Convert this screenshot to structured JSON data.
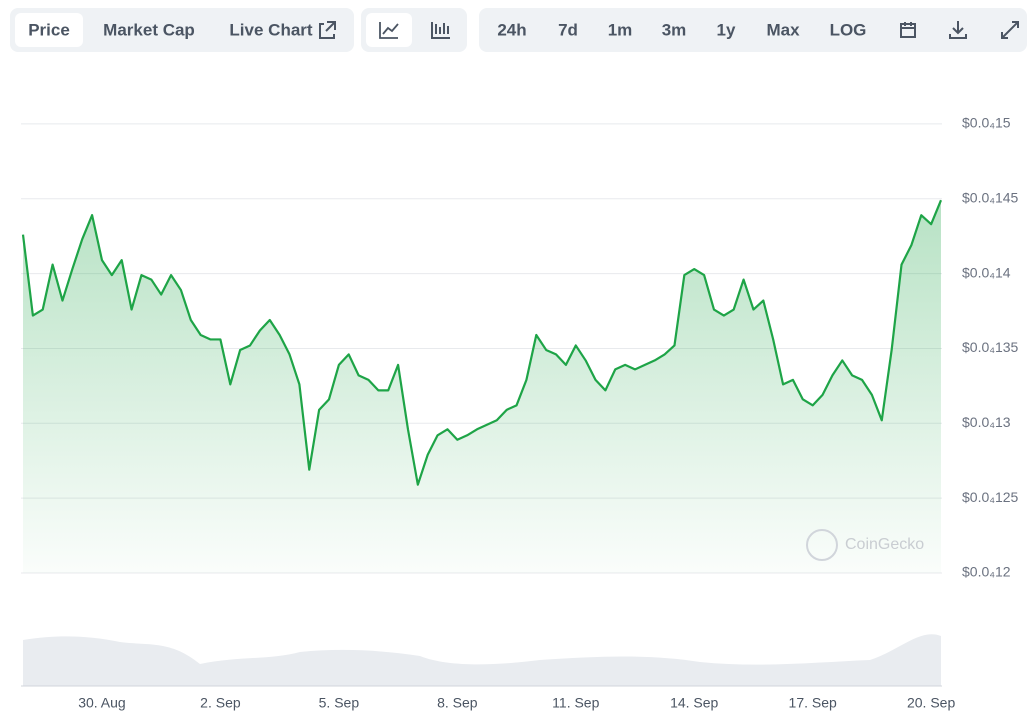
{
  "tabs": [
    "Price",
    "Market Cap",
    "Live Chart"
  ],
  "ranges": [
    "24h",
    "7d",
    "1m",
    "3m",
    "1y",
    "Max",
    "LOG"
  ],
  "watermark": "CoinGecko",
  "chart_data": {
    "type": "line",
    "color": "#1ea447",
    "categories": [
      null,
      null,
      null,
      null,
      null,
      null,
      null,
      null,
      "30. Aug",
      null,
      null,
      null,
      null,
      null,
      null,
      null,
      null,
      null,
      null,
      null,
      "2. Sep",
      null,
      null,
      null,
      null,
      null,
      null,
      null,
      null,
      null,
      null,
      null,
      "5. Sep",
      null,
      null,
      null,
      null,
      null,
      null,
      null,
      null,
      null,
      null,
      null,
      "8. Sep",
      null,
      null,
      null,
      null,
      null,
      null,
      null,
      null,
      null,
      null,
      null,
      "11. Sep",
      null,
      null,
      null,
      null,
      null,
      null,
      null,
      null,
      null,
      null,
      null,
      "14. Sep",
      null,
      null,
      null,
      null,
      null,
      null,
      null,
      null,
      null,
      null,
      null,
      "17. Sep",
      null,
      null,
      null,
      null,
      null,
      null,
      null,
      null,
      null,
      null,
      null,
      "20. Sep",
      null
    ],
    "values": [
      1.426e-05,
      1.372e-05,
      1.376e-05,
      1.406e-05,
      1.382e-05,
      1.403e-05,
      1.423e-05,
      1.439e-05,
      1.409e-05,
      1.399e-05,
      1.409e-05,
      1.376e-05,
      1.399e-05,
      1.396e-05,
      1.386e-05,
      1.399e-05,
      1.389e-05,
      1.369e-05,
      1.359e-05,
      1.356e-05,
      1.356e-05,
      1.326e-05,
      1.349e-05,
      1.352e-05,
      1.362e-05,
      1.369e-05,
      1.359e-05,
      1.346e-05,
      1.326e-05,
      1.269e-05,
      1.309e-05,
      1.316e-05,
      1.339e-05,
      1.346e-05,
      1.332e-05,
      1.329e-05,
      1.322e-05,
      1.322e-05,
      1.339e-05,
      1.296e-05,
      1.259e-05,
      1.279e-05,
      1.292e-05,
      1.296e-05,
      1.289e-05,
      1.292e-05,
      1.296e-05,
      1.299e-05,
      1.302e-05,
      1.309e-05,
      1.312e-05,
      1.329e-05,
      1.359e-05,
      1.349e-05,
      1.346e-05,
      1.339e-05,
      1.352e-05,
      1.342e-05,
      1.329e-05,
      1.322e-05,
      1.336e-05,
      1.339e-05,
      1.336e-05,
      1.339e-05,
      1.342e-05,
      1.346e-05,
      1.352e-05,
      1.399e-05,
      1.403e-05,
      1.399e-05,
      1.376e-05,
      1.372e-05,
      1.376e-05,
      1.396e-05,
      1.376e-05,
      1.382e-05,
      1.356e-05,
      1.326e-05,
      1.329e-05,
      1.316e-05,
      1.312e-05,
      1.319e-05,
      1.332e-05,
      1.342e-05,
      1.332e-05,
      1.329e-05,
      1.319e-05,
      1.302e-05,
      1.349e-05,
      1.406e-05,
      1.419e-05,
      1.439e-05,
      1.433e-05,
      1.449e-05
    ],
    "ylim": [
      1.2e-05,
      1.54e-05
    ],
    "yticks": [
      {
        "value": 1.2e-05,
        "label": "$0.0₄12"
      },
      {
        "value": 1.25e-05,
        "label": "$0.0₄125"
      },
      {
        "value": 1.3e-05,
        "label": "$0.0₄13"
      },
      {
        "value": 1.35e-05,
        "label": "$0.0₄135"
      },
      {
        "value": 1.4e-05,
        "label": "$0.0₄14"
      },
      {
        "value": 1.45e-05,
        "label": "$0.0₄145"
      },
      {
        "value": 1.5e-05,
        "label": "$0.0₄15"
      }
    ],
    "grid": true
  }
}
